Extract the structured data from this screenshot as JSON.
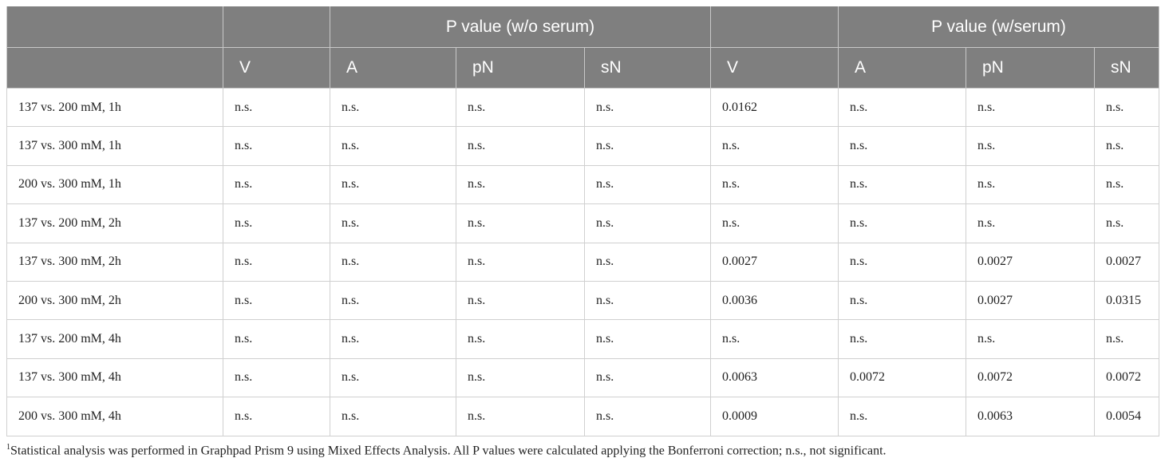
{
  "table": {
    "group_headers": [
      "P value (w/o serum)",
      "P value (w/serum)"
    ],
    "columns": [
      "V",
      "A",
      "pN",
      "sN",
      "V",
      "A",
      "pN",
      "sN"
    ],
    "rows": [
      [
        "137 vs. 200 mM, 1h",
        "n.s.",
        "n.s.",
        "n.s.",
        "n.s.",
        "0.0162",
        "n.s.",
        "n.s.",
        "n.s."
      ],
      [
        "137 vs. 300 mM, 1h",
        "n.s.",
        "n.s.",
        "n.s.",
        "n.s.",
        "n.s.",
        "n.s.",
        "n.s.",
        "n.s."
      ],
      [
        "200 vs. 300 mM, 1h",
        "n.s.",
        "n.s.",
        "n.s.",
        "n.s.",
        "n.s.",
        "n.s.",
        "n.s.",
        "n.s."
      ],
      [
        "137 vs. 200 mM, 2h",
        "n.s.",
        "n.s.",
        "n.s.",
        "n.s.",
        "n.s.",
        "n.s.",
        "n.s.",
        "n.s."
      ],
      [
        "137 vs. 300 mM, 2h",
        "n.s.",
        "n.s.",
        "n.s.",
        "n.s.",
        "0.0027",
        "n.s.",
        "0.0027",
        "0.0027"
      ],
      [
        "200 vs. 300 mM, 2h",
        "n.s.",
        "n.s.",
        "n.s.",
        "n.s.",
        "0.0036",
        "n.s.",
        "0.0027",
        "0.0315"
      ],
      [
        "137 vs. 200 mM, 4h",
        "n.s.",
        "n.s.",
        "n.s.",
        "n.s.",
        "n.s.",
        "n.s.",
        "n.s.",
        "n.s."
      ],
      [
        "137 vs. 300 mM, 4h",
        "n.s.",
        "n.s.",
        "n.s.",
        "n.s.",
        "0.0063",
        "0.0072",
        "0.0072",
        "0.0072"
      ],
      [
        "200 vs. 300 mM, 4h",
        "n.s.",
        "n.s.",
        "n.s.",
        "n.s.",
        "0.0009",
        "n.s.",
        "0.0063",
        "0.0054"
      ]
    ]
  },
  "footnote": {
    "marker": "1",
    "text": "Statistical analysis was performed in Graphpad Prism 9 using Mixed Effects Analysis. All P values were calculated applying the Bonferroni correction; n.s., not significant."
  }
}
